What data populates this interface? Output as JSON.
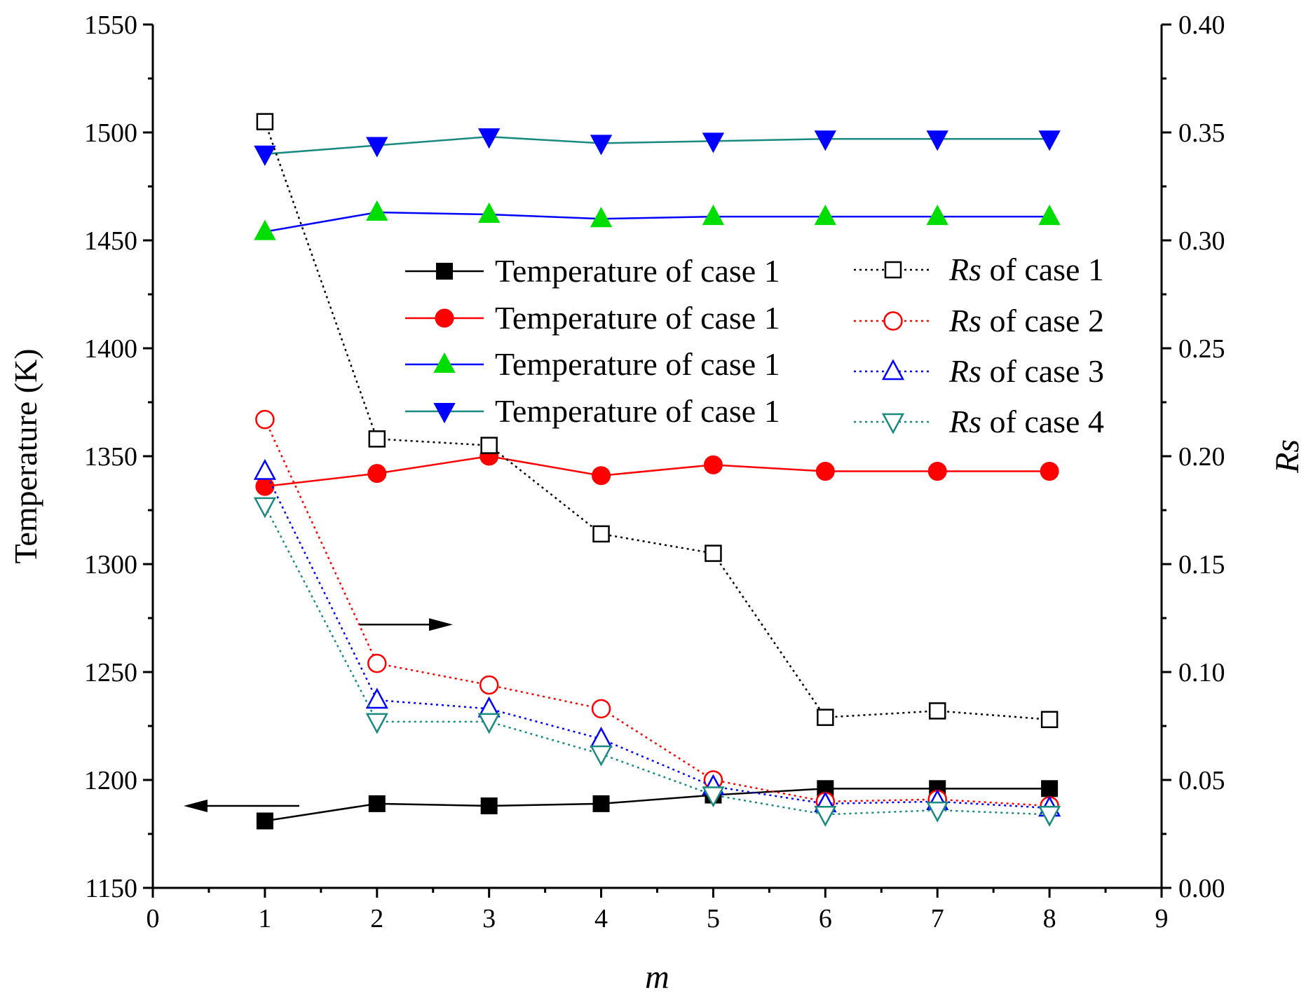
{
  "chart_data": {
    "type": "line",
    "title": "",
    "x": [
      1,
      2,
      3,
      4,
      5,
      6,
      7,
      8
    ],
    "xlabel": "m",
    "ylabel_left": "Temperature (K)",
    "ylabel_right": "Rs",
    "xlim": [
      0,
      9
    ],
    "ylim_left": [
      1150,
      1550
    ],
    "ylim_right": [
      0.0,
      0.4
    ],
    "xticks": [
      "0",
      "1",
      "2",
      "3",
      "4",
      "5",
      "6",
      "7",
      "8",
      "9"
    ],
    "yticks_left": [
      "1150",
      "1200",
      "1250",
      "1300",
      "1350",
      "1400",
      "1450",
      "1500",
      "1550"
    ],
    "yticks_right": [
      "0.00",
      "0.05",
      "0.10",
      "0.15",
      "0.20",
      "0.25",
      "0.30",
      "0.35",
      "0.40"
    ],
    "grid": false,
    "legend_position": "upper-center",
    "series": [
      {
        "name": "Temperature of case 1",
        "axis": "left",
        "marker": "square",
        "filled": true,
        "dotted": false,
        "color": "#000000",
        "values": [
          1181,
          1189,
          1188,
          1189,
          1193,
          1196,
          1196,
          1196
        ]
      },
      {
        "name": "Temperature of case 1",
        "axis": "left",
        "marker": "circle",
        "filled": true,
        "dotted": false,
        "color": "#ff0000",
        "values": [
          1336,
          1342,
          1350,
          1341,
          1346,
          1343,
          1343,
          1343
        ]
      },
      {
        "name": "Temperature of case 1",
        "axis": "left",
        "marker": "triangle-up",
        "filled": true,
        "dotted": false,
        "color": "#00dd00",
        "line_color": "#0000ff",
        "values": [
          1454,
          1463,
          1462,
          1460,
          1461,
          1461,
          1461,
          1461
        ]
      },
      {
        "name": "Temperature of case 1",
        "axis": "left",
        "marker": "triangle-down",
        "filled": true,
        "dotted": false,
        "color": "#0000ff",
        "line_color": "#1a8a80",
        "values": [
          1490,
          1494,
          1498,
          1495,
          1496,
          1497,
          1497,
          1497
        ]
      },
      {
        "name_prefix": "Rs",
        "name_suffix": " of case 1",
        "axis": "right",
        "marker": "square",
        "filled": false,
        "dotted": true,
        "color": "#000000",
        "values": [
          0.355,
          0.208,
          0.205,
          0.164,
          0.155,
          0.079,
          0.082,
          0.078
        ]
      },
      {
        "name_prefix": "Rs",
        "name_suffix": " of case 2",
        "axis": "right",
        "marker": "circle",
        "filled": false,
        "dotted": true,
        "color": "#ff0000",
        "values": [
          0.217,
          0.104,
          0.094,
          0.083,
          0.05,
          0.04,
          0.041,
          0.038
        ]
      },
      {
        "name_prefix": "Rs",
        "name_suffix": " of case 3",
        "axis": "right",
        "marker": "triangle-up",
        "filled": false,
        "dotted": true,
        "color": "#0000ff",
        "values": [
          0.193,
          0.087,
          0.083,
          0.069,
          0.047,
          0.039,
          0.04,
          0.037
        ]
      },
      {
        "name_prefix": "Rs",
        "name_suffix": " of case 4",
        "axis": "right",
        "marker": "triangle-down",
        "filled": false,
        "dotted": true,
        "color": "#1a8a80",
        "values": [
          0.177,
          0.077,
          0.077,
          0.062,
          0.043,
          0.034,
          0.036,
          0.034
        ]
      }
    ],
    "annotations": [
      {
        "type": "arrow",
        "direction": "left",
        "meaning": "points to left axis"
      },
      {
        "type": "arrow",
        "direction": "right",
        "meaning": "points to right axis"
      }
    ]
  }
}
